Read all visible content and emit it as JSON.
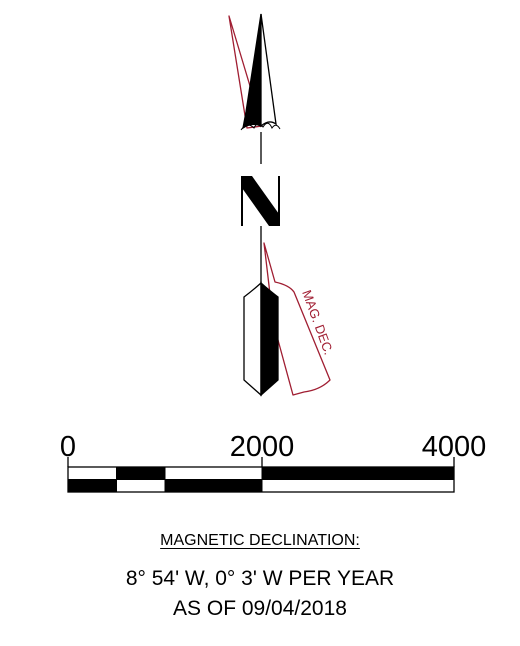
{
  "north_arrow": {
    "north_letter": "N",
    "magnetic_label": "MAG. DEC."
  },
  "scale_bar": {
    "ticks": [
      "0",
      "2000",
      "4000"
    ]
  },
  "declination": {
    "heading": "MAGNETIC DECLINATION:",
    "value": "8° 54' W, 0° 3' W PER YEAR",
    "as_of": "AS OF 09/04/2018"
  },
  "colors": {
    "ink": "#000000",
    "magnetic": "#a01e32",
    "background": "#ffffff"
  }
}
